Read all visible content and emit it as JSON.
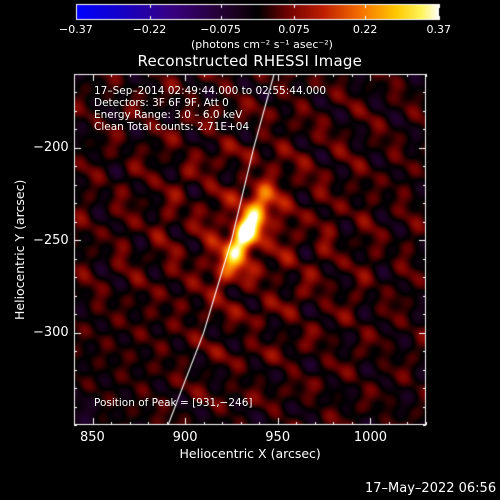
{
  "chart_data": {
    "type": "heatmap",
    "title": "Reconstructed RHESSI Image",
    "xlabel": "Heliocentric X (arcsec)",
    "ylabel": "Heliocentric Y (arcsec)",
    "xlim": [
      840,
      1030
    ],
    "ylim": [
      -350,
      -160
    ],
    "x_ticks": [
      850,
      900,
      950,
      1000
    ],
    "y_ticks": [
      -200,
      -250,
      -300
    ],
    "x_tick_labels": [
      "850",
      "900",
      "950",
      "1000"
    ],
    "y_tick_labels": [
      "−200",
      "−250",
      "−300"
    ],
    "colorbar": {
      "min": -0.37,
      "max": 0.37,
      "ticks": [
        -0.37,
        -0.22,
        -0.075,
        0.075,
        0.22,
        0.37
      ],
      "tick_labels": [
        "−0.37",
        "−0.22",
        "−0.075",
        "0.075",
        "0.22",
        "0.37"
      ],
      "label": "(photons cm⁻² s⁻¹ asec⁻²)",
      "colormap": "hot-diverging"
    },
    "overlay_lines": [
      "17–Sep–2014 02:49:44.000 to 02:55:44.000",
      "Detectors: 3F 6F 9F, Att 0",
      "Energy Range: 3.0 – 6.0 keV",
      "Clean     Total counts: 2.71E+04"
    ],
    "peak_label": "Position of Peak = [931,−246]",
    "peak": {
      "x": 931,
      "y": -246
    },
    "source": {
      "x": 933,
      "y": -246,
      "angle_deg": 63,
      "major_sigma": 16,
      "minor_sigma": 5
    },
    "limb_curve": [
      [
        890,
        -352
      ],
      [
        910,
        -300
      ],
      [
        925,
        -250
      ],
      [
        937,
        -200
      ],
      [
        948,
        -160
      ]
    ]
  },
  "footer": {
    "timestamp": "17–May–2022 06:56"
  },
  "colors": {
    "background": "#000000",
    "text": "#ffffff"
  }
}
